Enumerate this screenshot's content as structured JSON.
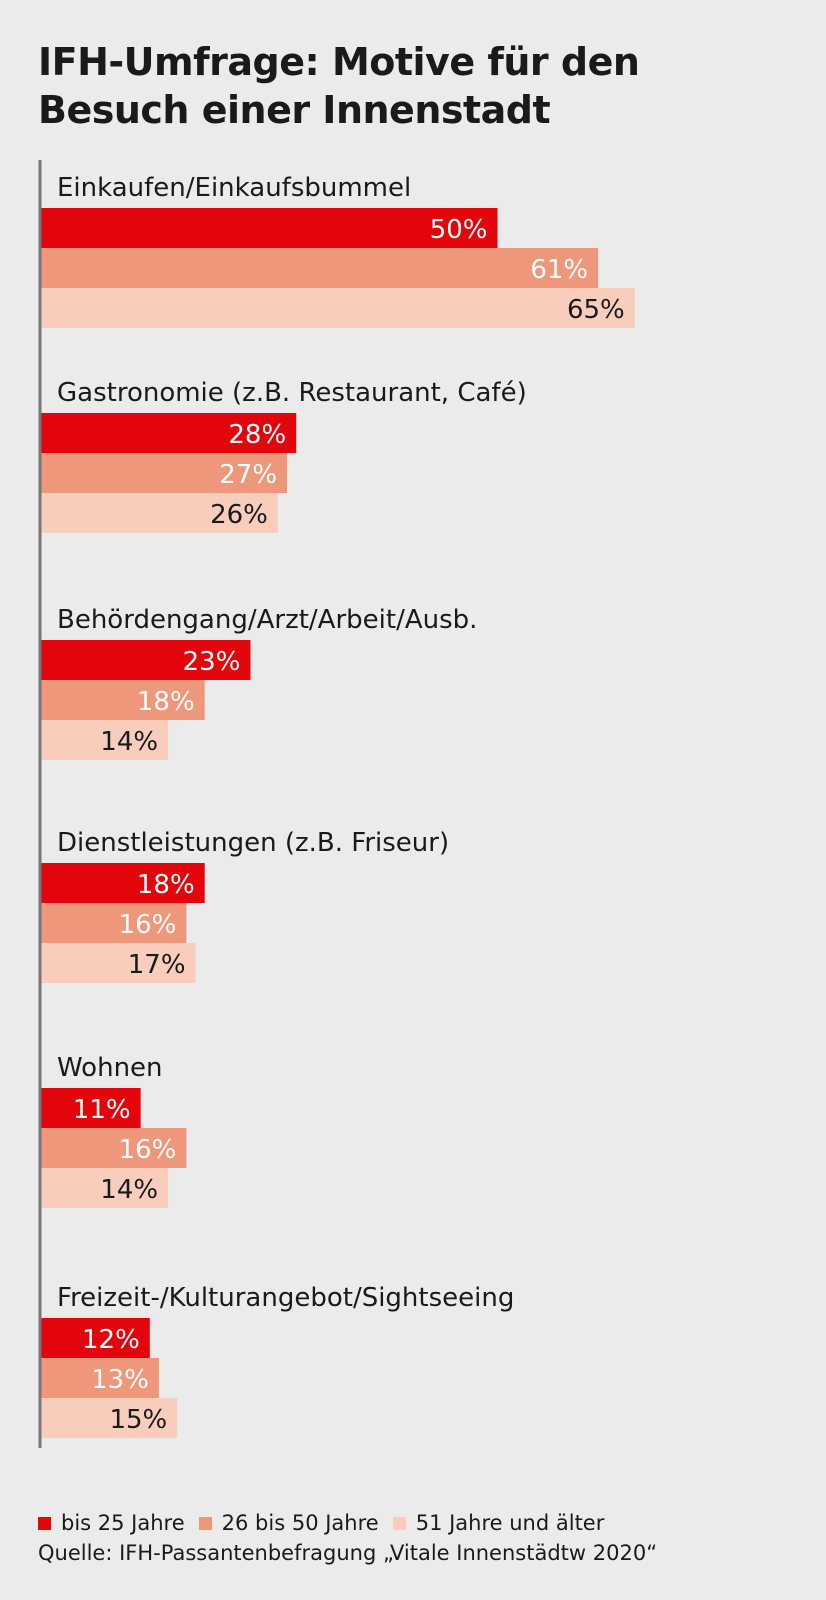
{
  "title_line1": "IFH-Umfrage: Motive für den",
  "title_line2": "Besuch einer Innenstadt",
  "source": "Quelle: IFH-Passantenbefragung „Vitale Innenstädtw 2020“",
  "colors": {
    "s1": "#e2060c",
    "s2": "#ef977a",
    "s3": "#f8cdbc",
    "axis": "#777777",
    "label_light": "#ffffff",
    "label_dark": "#1a1a1a"
  },
  "chart_data": {
    "type": "bar",
    "orientation": "horizontal",
    "title": "IFH-Umfrage: Motive für den Besuch einer Innenstadt",
    "categories": [
      "Einkaufen/Einkaufsbummel",
      "Gastronomie (z.B. Restaurant, Café)",
      "Behördengang/Arzt/Arbeit/Ausb.",
      "Dienstleistungen (z.B. Friseur)",
      "Wohnen",
      "Freizeit-/Kulturangebot/Sightseeing"
    ],
    "series": [
      {
        "name": "bis 25 Jahre",
        "values": [
          50,
          28,
          23,
          18,
          11,
          12
        ]
      },
      {
        "name": "26 bis 50 Jahre",
        "values": [
          61,
          27,
          18,
          16,
          16,
          13
        ]
      },
      {
        "name": "51 Jahre und älter",
        "values": [
          65,
          26,
          14,
          17,
          14,
          15
        ]
      }
    ],
    "value_suffix": "%",
    "xlim": [
      0,
      100
    ],
    "grid": false,
    "legend_position": "bottom"
  }
}
